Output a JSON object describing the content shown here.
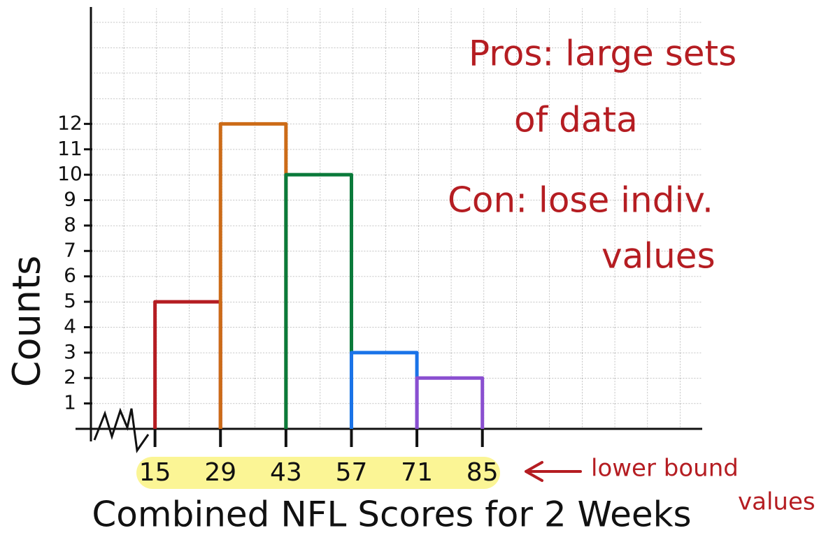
{
  "chart_data": {
    "type": "histogram",
    "xlabel": "Combined NFL Scores for 2 Weeks",
    "ylabel": "Counts",
    "bins": [
      15,
      29,
      43,
      57,
      71,
      85
    ],
    "counts": [
      5,
      12,
      10,
      3,
      2
    ],
    "colors": [
      "#b51d22",
      "#cc6b17",
      "#0a7a3a",
      "#1a73e8",
      "#8a4fd0"
    ],
    "xlim": [
      1,
      132
    ],
    "xticks": [
      15,
      29,
      43,
      57,
      71,
      85
    ],
    "ylim": [
      0,
      16.6
    ],
    "yticks": [
      1,
      2,
      3,
      4,
      5,
      6,
      7,
      8,
      9,
      10,
      11,
      12
    ],
    "annotations": [
      "Pros: large sets",
      "of data",
      "Con: lose indiv.",
      "values",
      "lower bound",
      "values"
    ]
  }
}
